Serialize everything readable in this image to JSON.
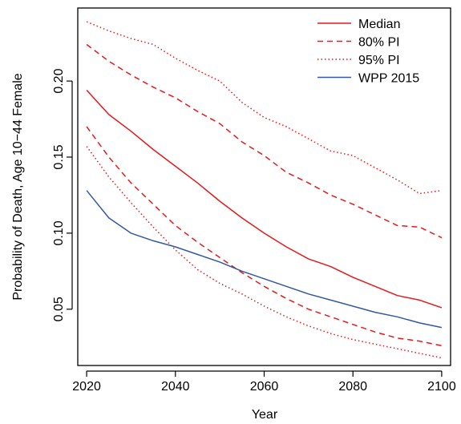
{
  "chart_data": {
    "type": "line",
    "xlabel": "Year",
    "ylabel": "Probability of Death, Age 10−44 Female",
    "xlim": [
      2018,
      2102
    ],
    "ylim": [
      0.013,
      0.248
    ],
    "xticks": [
      2020,
      2040,
      2060,
      2080,
      2100
    ],
    "xtick_labels": [
      "2020",
      "2040",
      "2060",
      "2080",
      "2100"
    ],
    "yticks": [
      0.05,
      0.1,
      0.15,
      0.2
    ],
    "ytick_labels": [
      "0.05",
      "0.10",
      "0.15",
      "0.20"
    ],
    "grid": false,
    "legend_position": "top-right",
    "x": [
      2020,
      2025,
      2030,
      2035,
      2040,
      2045,
      2050,
      2055,
      2060,
      2065,
      2070,
      2075,
      2080,
      2085,
      2090,
      2095,
      2100
    ],
    "series": [
      {
        "name": "Median",
        "color": "#e8191c",
        "style": "solid",
        "values": [
          0.194,
          0.178,
          0.167,
          0.155,
          0.144,
          0.133,
          0.121,
          0.11,
          0.1,
          0.091,
          0.083,
          0.078,
          0.071,
          0.065,
          0.059,
          0.056,
          0.051
        ]
      },
      {
        "name": "80% PI",
        "color": "#e8191c",
        "style": "dashed",
        "upper": [
          0.224,
          0.213,
          0.204,
          0.196,
          0.189,
          0.18,
          0.172,
          0.16,
          0.151,
          0.14,
          0.133,
          0.125,
          0.119,
          0.112,
          0.105,
          0.104,
          0.097
        ],
        "lower": [
          0.17,
          0.15,
          0.133,
          0.119,
          0.105,
          0.094,
          0.084,
          0.074,
          0.065,
          0.057,
          0.05,
          0.045,
          0.04,
          0.035,
          0.031,
          0.029,
          0.026
        ]
      },
      {
        "name": "95% PI",
        "color": "#e8191c",
        "style": "dotted",
        "upper": [
          0.239,
          0.233,
          0.228,
          0.224,
          0.215,
          0.207,
          0.2,
          0.186,
          0.176,
          0.17,
          0.162,
          0.154,
          0.151,
          0.143,
          0.135,
          0.126,
          0.128
        ],
        "lower": [
          0.157,
          0.137,
          0.12,
          0.104,
          0.089,
          0.076,
          0.067,
          0.06,
          0.052,
          0.045,
          0.039,
          0.034,
          0.03,
          0.027,
          0.024,
          0.021,
          0.018
        ]
      },
      {
        "name": "WPP 2015",
        "color": "#3358a4",
        "style": "solid",
        "values": [
          0.128,
          0.11,
          0.1,
          0.095,
          0.091,
          0.086,
          0.081,
          0.075,
          0.07,
          0.065,
          0.06,
          0.056,
          0.052,
          0.048,
          0.045,
          0.041,
          0.038
        ]
      }
    ]
  }
}
